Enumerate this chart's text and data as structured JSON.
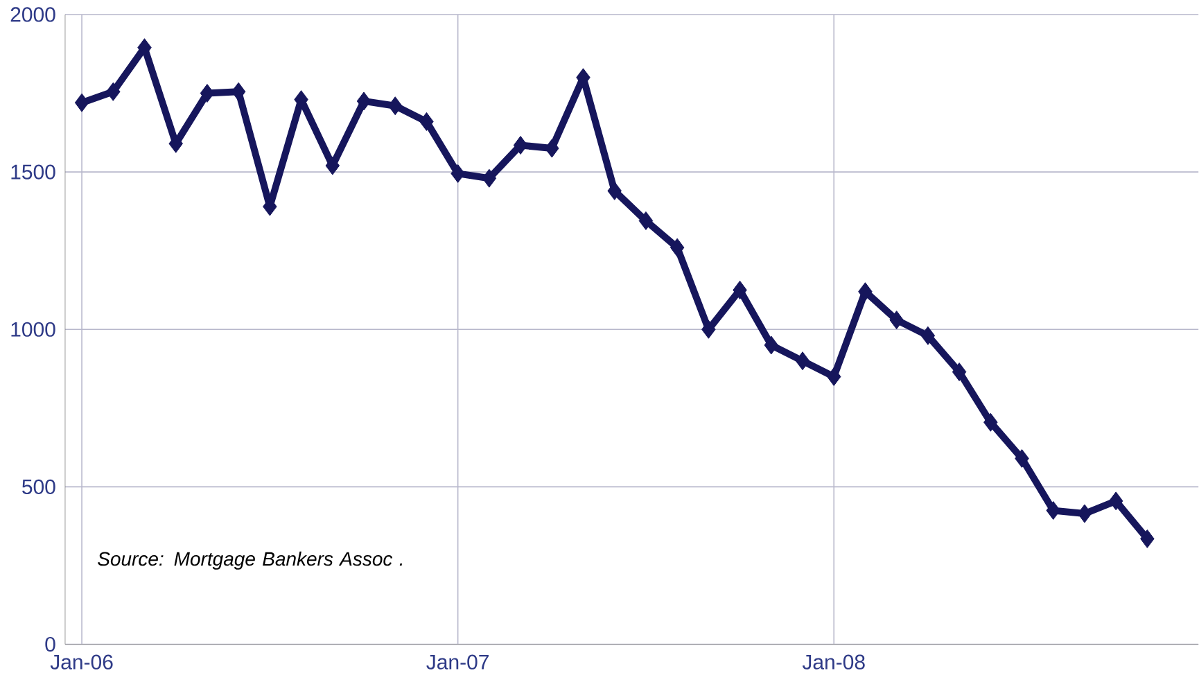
{
  "chart_data": {
    "type": "line",
    "x": [
      "2006-01",
      "2006-02",
      "2006-03",
      "2006-04",
      "2006-05",
      "2006-06",
      "2006-07",
      "2006-08",
      "2006-09",
      "2006-10",
      "2006-11",
      "2006-12",
      "2007-01",
      "2007-02",
      "2007-03",
      "2007-04",
      "2007-05",
      "2007-06",
      "2007-07",
      "2007-08",
      "2007-09",
      "2007-10",
      "2007-11",
      "2007-12",
      "2008-01",
      "2008-02",
      "2008-03",
      "2008-04",
      "2008-05",
      "2008-06",
      "2008-07",
      "2008-08",
      "2008-09",
      "2008-10",
      "2008-11"
    ],
    "series": [
      {
        "color": "#16165c",
        "values": [
          1720,
          1755,
          1895,
          1590,
          1750,
          1755,
          1390,
          1730,
          1520,
          1725,
          1710,
          1660,
          1495,
          1480,
          1585,
          1575,
          1800,
          1440,
          1345,
          1260,
          1000,
          1125,
          950,
          900,
          850,
          1120,
          1030,
          980,
          865,
          705,
          590,
          425,
          415,
          455,
          335
        ]
      }
    ],
    "xlim": [
      "2005-12-15",
      "2008-12-20"
    ],
    "xticks": [
      {
        "value": "2006-01",
        "label": "Jan-06"
      },
      {
        "value": "2007-01",
        "label": "Jan-07"
      },
      {
        "value": "2008-01",
        "label": "Jan-08"
      }
    ],
    "ylim": [
      0,
      2000
    ],
    "yticks": [
      0,
      500,
      1000,
      1500,
      2000
    ],
    "grid": true,
    "marker": "diamond",
    "line_style": "solid",
    "annotations": [
      "Source: Mortgage Bankers Assoc ."
    ]
  }
}
